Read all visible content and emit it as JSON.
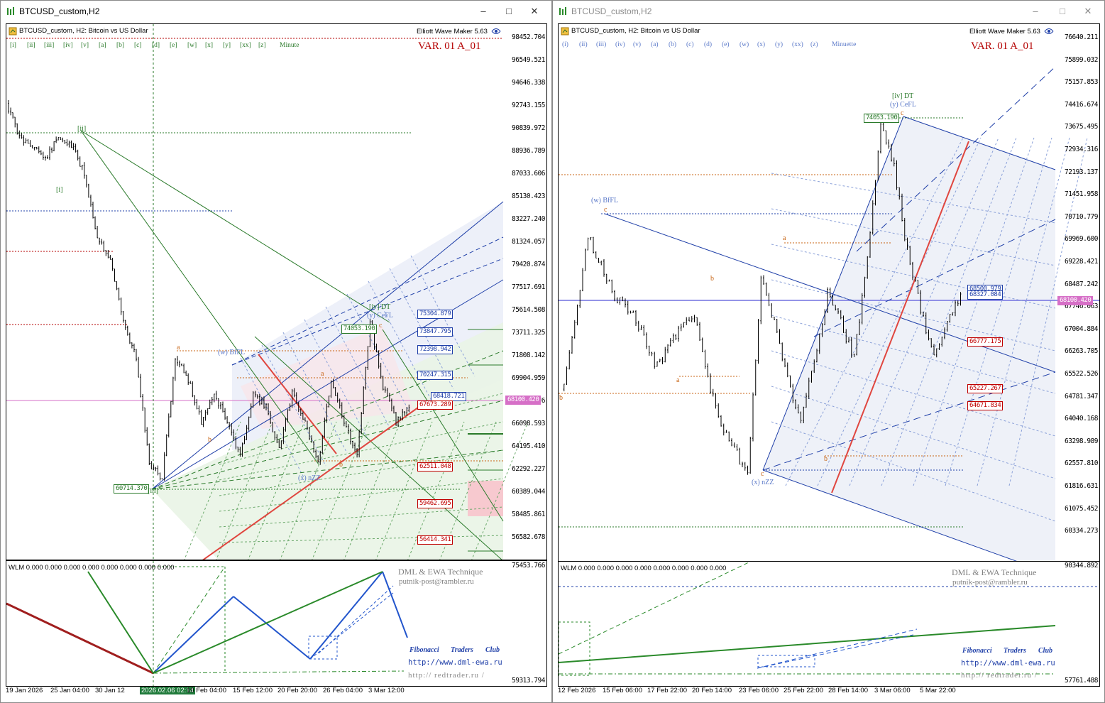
{
  "left": {
    "window_title": "BTCUSD_custom,H2",
    "chart_header": "BTCUSD_custom, H2:  Bitcoin vs US Dollar",
    "indicator": "Elliott Wave Maker 5.63",
    "variant": "VAR. 01 A_01",
    "wave_buttons": [
      "[i]",
      "[ii]",
      "[iii]",
      "[iv]",
      "[v]",
      "[a]",
      "[b]",
      "[c]",
      "[d]",
      "[e]",
      "[w]",
      "[x]",
      "[y]",
      "[xx]",
      "[z]",
      "Minute"
    ],
    "price_scale": [
      "98452.704",
      "96549.521",
      "94646.338",
      "92743.155",
      "90839.972",
      "88936.789",
      "87033.606",
      "85130.423",
      "83227.240",
      "81324.057",
      "79420.874",
      "77517.691",
      "75614.508",
      "73711.325",
      "71808.142",
      "69904.959",
      "68001.776",
      "66098.593",
      "64195.410",
      "62292.227",
      "60389.044",
      "58485.861",
      "56582.678"
    ],
    "current_price": "68100.420",
    "price_labels_blue": [
      "75304.879",
      "73847.795",
      "72398.942",
      "70247.315",
      "68418.721"
    ],
    "price_labels_red": [
      "67673.289",
      "62511.048",
      "59462.695",
      "56414.341"
    ],
    "price_labels_green": [
      "74053.190",
      "60714.370"
    ],
    "wave_labels": {
      "iv_dt": "[iv] DT",
      "y_cefl": "(y) CeFL",
      "w_bffl": "(w) BfFL",
      "x_nzz": "(x) nZZ",
      "i": "[i]",
      "ii": "[ii]",
      "iii": "[iii]",
      "a": "a",
      "b": "b",
      "c": "c"
    },
    "x_axis": [
      "19 Jan 2026",
      "25 Jan 04:00",
      "30 Jan 12",
      "2026.02.06 02:14",
      "10 Feb 04:00",
      "15 Feb 12:00",
      "20 Feb 20:00",
      "26 Feb 04:00",
      "3 Mar 12:00"
    ],
    "wlm_text": "WLM 0.000 0.000 0.000 0.000 0.000 0.000 0.000 0.000",
    "wlm_scale": [
      "75453.766",
      "59313.794"
    ],
    "credits": {
      "dml": "DML & EWA Technique",
      "email": "putnik-post@rambler.ru",
      "fib": [
        "Fibonacci",
        "Traders",
        "Club"
      ],
      "url1": "http://www.dml-ewa.ru",
      "url2": "http:// redtrader.ru /"
    }
  },
  "right": {
    "window_title": "BTCUSD_custom,H2",
    "chart_header": "BTCUSD_custom, H2:  Bitcoin vs US Dollar",
    "indicator": "Elliott Wave Maker 5.63",
    "variant": "VAR. 01 A_01",
    "wave_buttons": [
      "(i)",
      "(ii)",
      "(iii)",
      "(iv)",
      "(v)",
      "(a)",
      "(b)",
      "(c)",
      "(d)",
      "(e)",
      "(w)",
      "(x)",
      "(y)",
      "(xx)",
      "(z)",
      "Minuette"
    ],
    "price_scale": [
      "76640.211",
      "75899.032",
      "75157.853",
      "74416.674",
      "73675.495",
      "72934.316",
      "72193.137",
      "71451.958",
      "70710.779",
      "69969.600",
      "69228.421",
      "68487.242",
      "67746.063",
      "67004.884",
      "66263.705",
      "65522.526",
      "64781.347",
      "64040.168",
      "63298.989",
      "62557.810",
      "61816.631",
      "61075.452",
      "60334.273"
    ],
    "current_price": "68100.420",
    "price_labels_blue": [
      "68500.979",
      "68327.084"
    ],
    "price_labels_red": [
      "66777.175",
      "65227.267",
      "64671.834"
    ],
    "price_labels_green": [
      "74053.190"
    ],
    "wave_labels": {
      "iv_dt": "[iv] DT",
      "y_cefl": "(y) CeFL",
      "w_bffl": "(w) BfFL",
      "x_nzz": "(x) nZZ",
      "a": "a",
      "b": "b",
      "c": "c"
    },
    "x_axis": [
      "12 Feb 2026",
      "15 Feb 06:00",
      "17 Feb 22:00",
      "20 Feb 14:00",
      "23 Feb 06:00",
      "25 Feb 22:00",
      "28 Feb 14:00",
      "3 Mar 06:00",
      "5 Mar 22:00"
    ],
    "wlm_text": "WLM 0.000 0.000 0.000 0.000 0.000 0.000 0.000 0.000",
    "wlm_scale": [
      "90344.892",
      "57761.488"
    ],
    "credits": {
      "dml": "DML & EWA Technique",
      "email": "putnik-post@rambler.ru",
      "fib": [
        "Fibonacci",
        "Traders",
        "Club"
      ],
      "url1": "http://www.dml-ewa.ru",
      "url2": "http:// redtrader.ru /"
    }
  },
  "colors": {
    "candles": "#000000",
    "blue": "#1f3fa8",
    "red": "#e0463f",
    "green": "#2a7a2a",
    "orange": "#c86414",
    "current_price": "#d66fc7"
  },
  "icons": [
    "chart-icon",
    "minimize-icon",
    "maximize-icon",
    "close-icon",
    "globe-icon"
  ]
}
